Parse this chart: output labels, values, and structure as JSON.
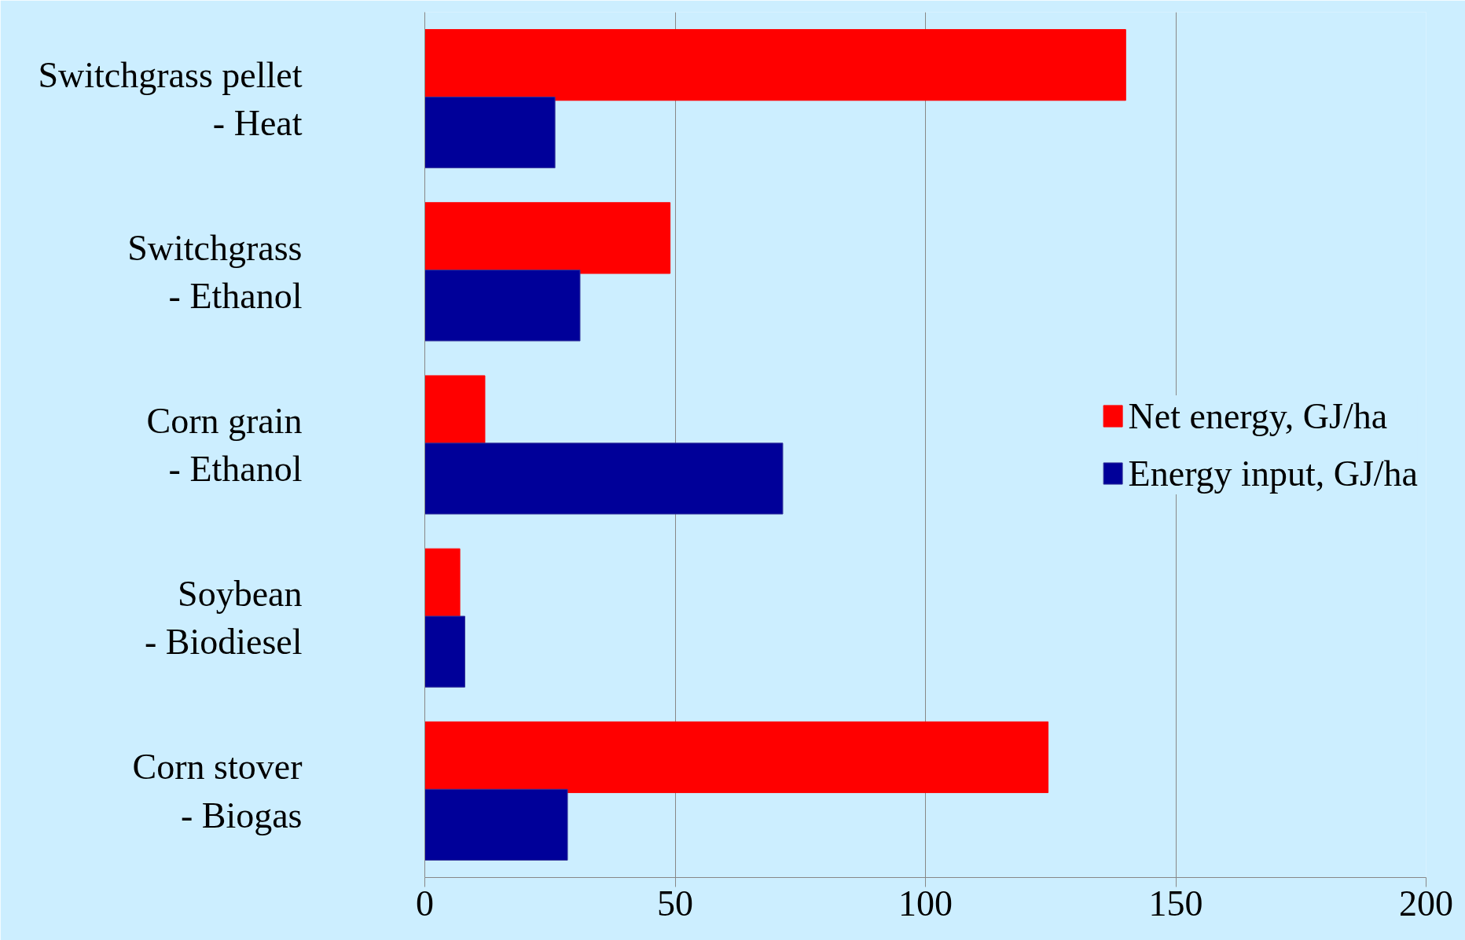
{
  "chart_data": {
    "type": "bar",
    "orientation": "horizontal",
    "categories": [
      "Switchgrass pellet\n- Heat",
      "Switchgrass\n- Ethanol",
      "Corn grain\n- Ethanol",
      "Soybean\n- Biodiesel",
      "Corn stover\n- Biogas"
    ],
    "series": [
      {
        "name": "Net energy, GJ/ha",
        "color": "#ff0000",
        "values": [
          140,
          49,
          12,
          7,
          124.5
        ]
      },
      {
        "name": "Energy input, GJ/ha",
        "color": "#000099",
        "values": [
          26,
          31,
          71.5,
          8,
          28.5
        ]
      }
    ],
    "xlim": [
      0,
      200
    ],
    "xticks": [
      0,
      50,
      100,
      150,
      200
    ],
    "grid": "x",
    "legend": "right"
  }
}
